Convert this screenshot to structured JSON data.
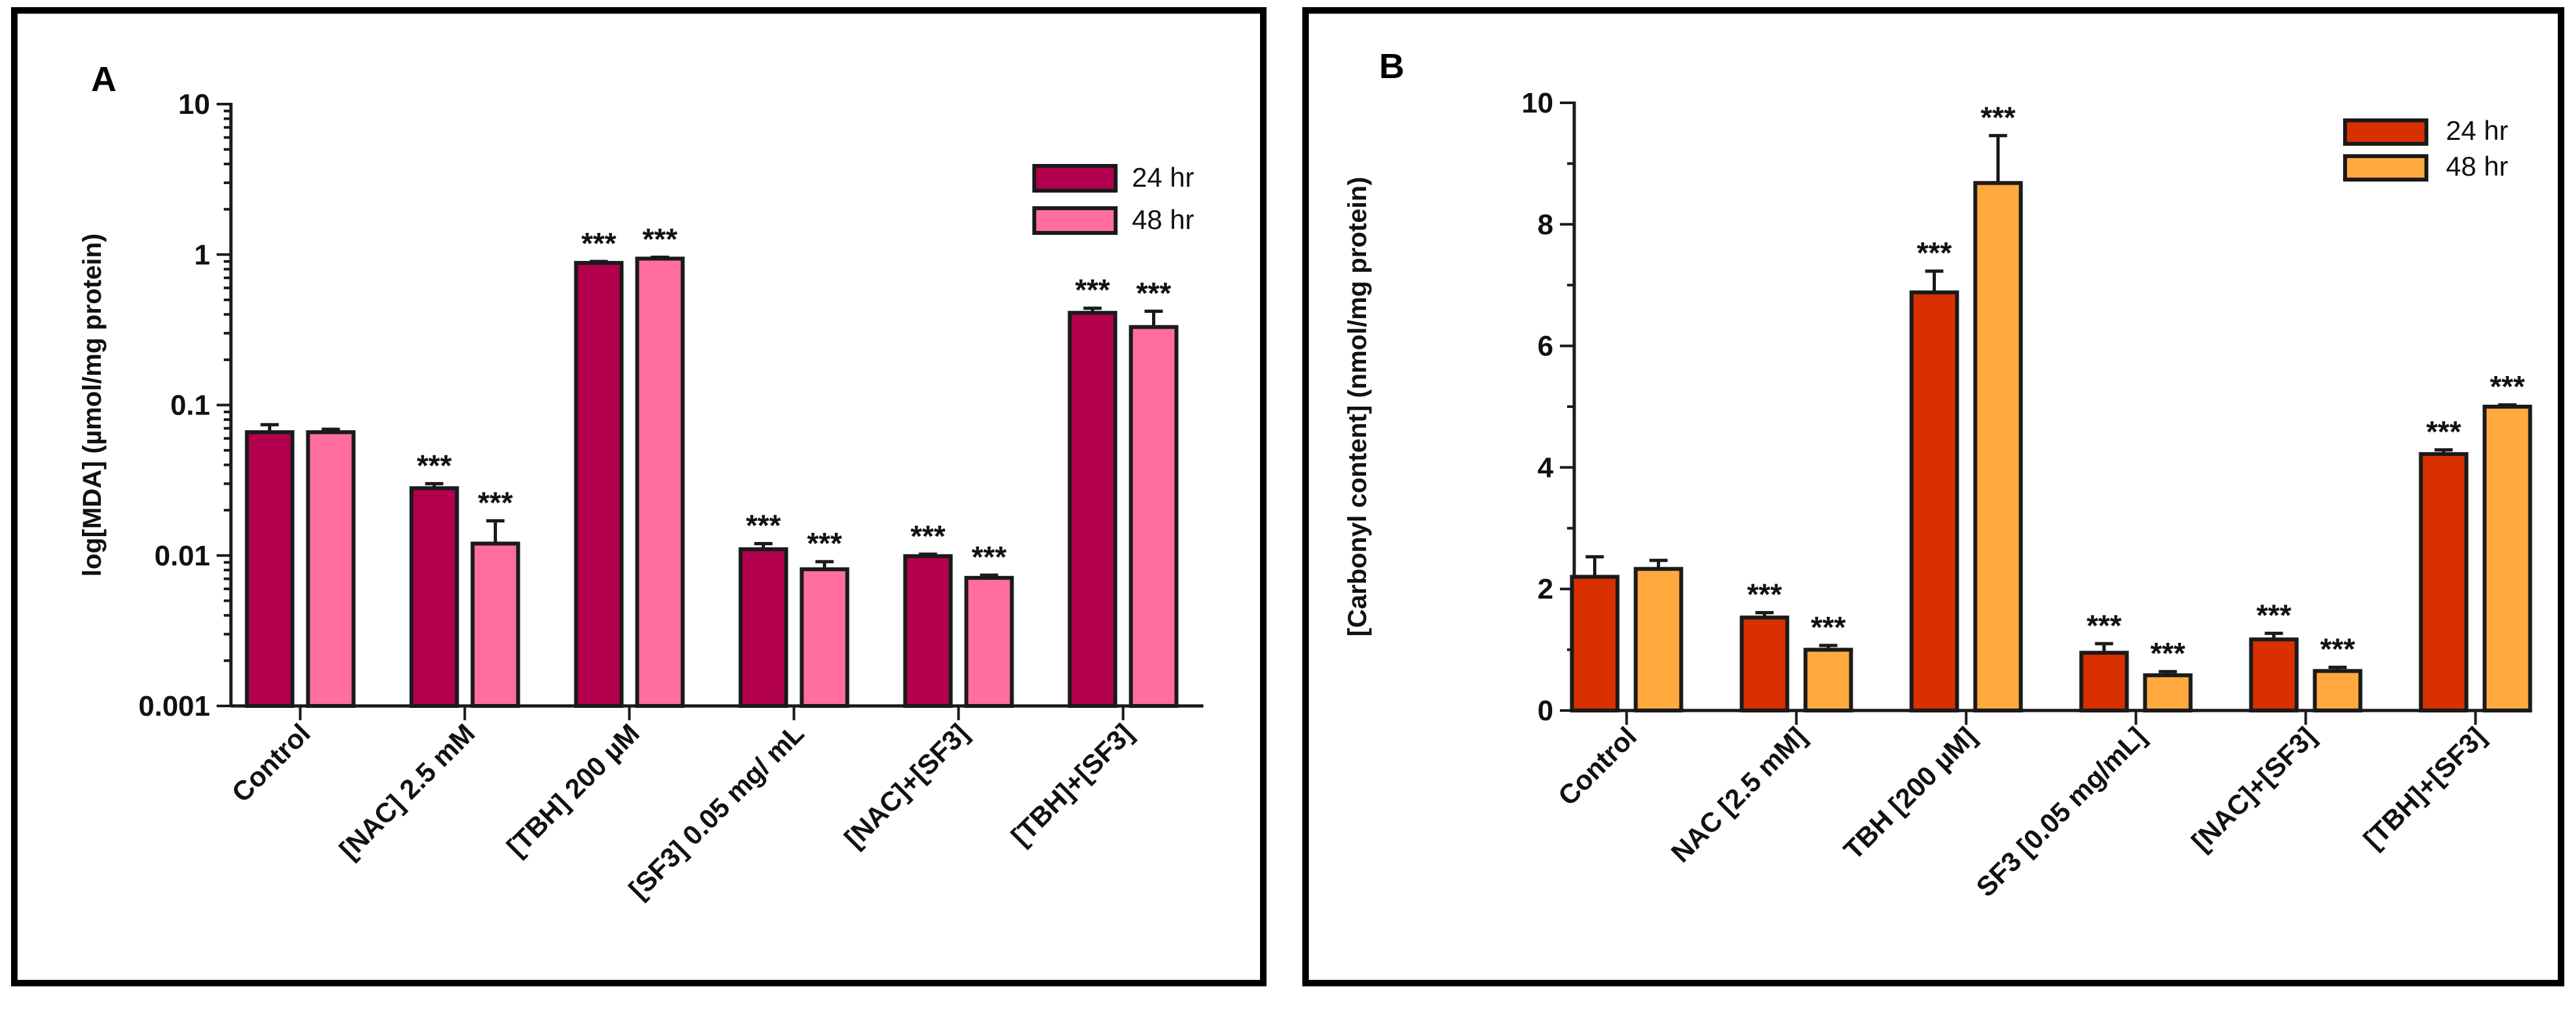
{
  "chart_data": [
    {
      "panel": "A",
      "type": "bar",
      "scale": "log",
      "ylabel": "log[MDA] (µmol/mg protein)",
      "ylim": [
        0.001,
        10
      ],
      "yticks": [
        "0.001",
        "0.01",
        "0.1",
        "1",
        "10"
      ],
      "yticks_values": [
        0.001,
        0.01,
        0.1,
        1,
        10
      ],
      "categories": [
        "Control",
        "[NAC] 2.5 mM",
        "[TBH] 200 µM",
        "[SF3] 0.05 mg/ mL",
        "[NAC]+[SF3]",
        "[TBH]+[SF3]"
      ],
      "series": [
        {
          "name": "24 hr",
          "color": "#b3004e",
          "values": [
            0.066,
            0.028,
            0.88,
            0.011,
            0.0099,
            0.41
          ],
          "errors": [
            0.008,
            0.002,
            0.02,
            0.001,
            0.0003,
            0.03
          ],
          "sig": [
            "",
            "***",
            "***",
            "***",
            "***",
            "***"
          ]
        },
        {
          "name": "48 hr",
          "color": "#ff6e9c",
          "values": [
            0.066,
            0.012,
            0.94,
            0.0081,
            0.0071,
            0.33
          ],
          "errors": [
            0.003,
            0.005,
            0.02,
            0.001,
            0.0003,
            0.09
          ],
          "sig": [
            "",
            "***",
            "***",
            "***",
            "***",
            "***"
          ]
        }
      ]
    },
    {
      "panel": "B",
      "type": "bar",
      "scale": "linear",
      "ylabel": "[Carbonyl content] (nmol/mg protein)",
      "ylim": [
        0,
        10
      ],
      "yticks": [
        "0",
        "2",
        "4",
        "6",
        "8",
        "10"
      ],
      "yticks_values": [
        0,
        2,
        4,
        6,
        8,
        10
      ],
      "categories": [
        "Control",
        "NAC [2.5 mM]",
        "TBH [200 µM]",
        "SF3 [0.05 mg/mL]",
        "[NAC]+[SF3]",
        "[TBH]+[SF3]"
      ],
      "series": [
        {
          "name": "24 hr",
          "color": "#d93000",
          "values": [
            2.2,
            1.53,
            6.88,
            0.95,
            1.17,
            4.22
          ],
          "errors": [
            0.33,
            0.08,
            0.35,
            0.15,
            0.1,
            0.07
          ],
          "sig": [
            "",
            "***",
            "***",
            "***",
            "***",
            "***"
          ]
        },
        {
          "name": "48 hr",
          "color": "#ffa93f",
          "values": [
            2.33,
            1.0,
            8.68,
            0.58,
            0.65,
            5.0
          ],
          "errors": [
            0.14,
            0.07,
            0.78,
            0.06,
            0.06,
            0.03
          ],
          "sig": [
            "",
            "***",
            "***",
            "***",
            "***",
            "***"
          ]
        }
      ]
    }
  ]
}
